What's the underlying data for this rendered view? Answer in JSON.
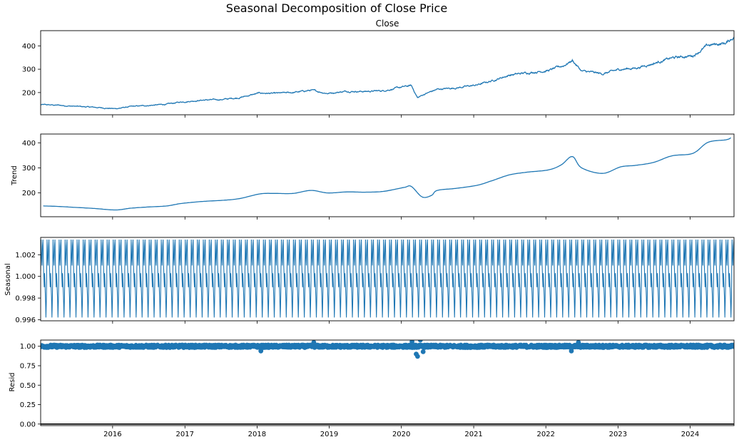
{
  "figure": {
    "title": "Seasonal Decomposition of Close Price"
  },
  "colors": {
    "series": "#1f77b4",
    "axes": "#000000",
    "zero_line": "#000000"
  },
  "chart_data": [
    {
      "name": "close",
      "type": "line",
      "title": "Close",
      "ylabel": "",
      "ylim": [
        105,
        465
      ],
      "yticks": [
        200,
        300,
        400
      ],
      "ytick_labels": [
        "200",
        "300",
        "400"
      ],
      "grid": false,
      "x": [
        "2015-01-02",
        "2015-04-01",
        "2015-07-01",
        "2015-10-01",
        "2016-01-15",
        "2016-04-01",
        "2016-07-01",
        "2016-10-01",
        "2016-12-15",
        "2017-04-01",
        "2017-07-01",
        "2017-10-01",
        "2018-01-15",
        "2018-04-01",
        "2018-07-01",
        "2018-10-01",
        "2018-12-24",
        "2019-04-01",
        "2019-07-01",
        "2019-10-01",
        "2020-01-15",
        "2020-02-20",
        "2020-03-23",
        "2020-05-01",
        "2020-07-01",
        "2020-10-01",
        "2021-01-15",
        "2021-04-01",
        "2021-07-01",
        "2021-10-01",
        "2022-01-15",
        "2022-03-31",
        "2022-05-15",
        "2022-07-01",
        "2022-10-15",
        "2023-01-15",
        "2023-04-01",
        "2023-07-01",
        "2023-10-01",
        "2024-01-15",
        "2024-04-01",
        "2024-07-01",
        "2024-08-10"
      ],
      "y": [
        148,
        146,
        141,
        137,
        131,
        140,
        145,
        150,
        160,
        168,
        170,
        178,
        198,
        196,
        200,
        210,
        197,
        206,
        205,
        208,
        225,
        230,
        178,
        195,
        214,
        220,
        232,
        250,
        275,
        285,
        295,
        315,
        338,
        292,
        280,
        300,
        305,
        325,
        348,
        358,
        402,
        412,
        438
      ]
    },
    {
      "name": "trend",
      "type": "line",
      "title": "",
      "ylabel": "Trend",
      "ylim": [
        105,
        435
      ],
      "yticks": [
        200,
        300,
        400
      ],
      "ytick_labels": [
        "200",
        "300",
        "400"
      ],
      "grid": false,
      "x": [
        "2015-01-15",
        "2015-04-01",
        "2015-07-01",
        "2015-10-01",
        "2016-01-15",
        "2016-04-01",
        "2016-07-01",
        "2016-10-01",
        "2016-12-15",
        "2017-04-01",
        "2017-07-01",
        "2017-10-01",
        "2018-01-15",
        "2018-04-01",
        "2018-07-01",
        "2018-10-01",
        "2018-12-24",
        "2019-04-01",
        "2019-07-01",
        "2019-10-01",
        "2020-01-15",
        "2020-02-20",
        "2020-04-15",
        "2020-06-01",
        "2020-07-01",
        "2020-10-01",
        "2021-01-15",
        "2021-04-01",
        "2021-07-01",
        "2021-10-01",
        "2022-01-15",
        "2022-03-20",
        "2022-05-15",
        "2022-07-01",
        "2022-10-15",
        "2023-01-15",
        "2023-04-01",
        "2023-07-01",
        "2023-10-01",
        "2024-01-15",
        "2024-04-01",
        "2024-07-01",
        "2024-07-25"
      ],
      "y": [
        148,
        146,
        142,
        138,
        132,
        139,
        144,
        148,
        158,
        166,
        170,
        177,
        196,
        198,
        198,
        210,
        200,
        204,
        203,
        206,
        222,
        226,
        184,
        190,
        210,
        218,
        230,
        248,
        272,
        283,
        292,
        312,
        345,
        300,
        278,
        304,
        310,
        322,
        348,
        358,
        402,
        412,
        420
      ]
    },
    {
      "name": "seasonal",
      "type": "line",
      "title": "",
      "ylabel": "Seasonal",
      "ylim": [
        0.9959,
        1.0036
      ],
      "yticks": [
        0.996,
        0.998,
        1.0,
        1.002
      ],
      "ytick_labels": [
        "0.996",
        "0.998",
        "1.000",
        "1.002"
      ],
      "grid": false,
      "x_start": "2015-01-02",
      "x_end": "2024-08-10",
      "period_days": 30.4,
      "cycle_values": [
        1.0005,
        1.0034,
        1.0019,
        1.001,
        1.0028,
        1.0034,
        1.001,
        0.9999,
        0.999,
        1.0003,
        0.9993,
        0.9981,
        0.9962,
        0.9975,
        0.9996
      ],
      "cycle_phase": [
        0.0,
        0.07,
        0.14,
        0.22,
        0.3,
        0.38,
        0.46,
        0.53,
        0.59,
        0.65,
        0.72,
        0.8,
        0.88,
        0.94,
        1.0
      ]
    },
    {
      "name": "resid",
      "type": "scatter",
      "title": "",
      "ylabel": "Resid",
      "ylim": [
        -0.02,
        1.08
      ],
      "yticks": [
        0.0,
        0.25,
        0.5,
        0.75,
        1.0
      ],
      "ytick_labels": [
        "0.00",
        "0.25",
        "0.50",
        "0.75",
        "1.00"
      ],
      "grid": false,
      "baseline": 0,
      "x_start": "2015-01-02",
      "x_end": "2024-08-10",
      "center": 1.0,
      "typical_spread": 0.018,
      "notable_points": [
        {
          "x": "2018-01-20",
          "y": 0.94
        },
        {
          "x": "2018-10-15",
          "y": 1.05
        },
        {
          "x": "2020-02-24",
          "y": 1.06
        },
        {
          "x": "2020-03-16",
          "y": 0.9
        },
        {
          "x": "2020-03-23",
          "y": 0.87
        },
        {
          "x": "2020-04-06",
          "y": 1.08
        },
        {
          "x": "2020-04-20",
          "y": 0.93
        },
        {
          "x": "2022-05-10",
          "y": 0.94
        },
        {
          "x": "2022-06-15",
          "y": 1.05
        }
      ]
    }
  ],
  "x_axis": {
    "range": [
      "2015-01-02",
      "2024-08-10"
    ],
    "ticks": [
      "2016-01-01",
      "2017-01-01",
      "2018-01-01",
      "2019-01-01",
      "2020-01-01",
      "2021-01-01",
      "2022-01-01",
      "2023-01-01",
      "2024-01-01"
    ],
    "tick_labels": [
      "2016",
      "2017",
      "2018",
      "2019",
      "2020",
      "2021",
      "2022",
      "2023",
      "2024"
    ]
  }
}
